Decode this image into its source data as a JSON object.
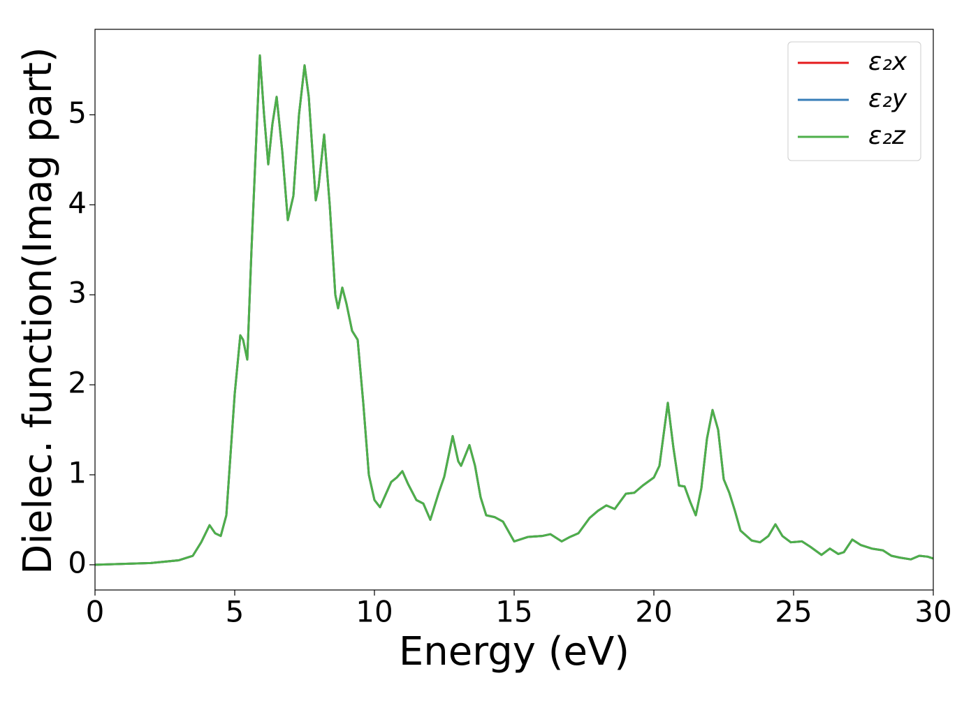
{
  "chart_data": {
    "type": "line",
    "xlabel": "Energy (eV)",
    "ylabel": "Dielec. function(Imag part)",
    "x": [
      0,
      1,
      2,
      3,
      3.5,
      3.8,
      4.1,
      4.3,
      4.5,
      4.7,
      5.0,
      5.2,
      5.3,
      5.45,
      5.6,
      5.9,
      6.05,
      6.2,
      6.35,
      6.5,
      6.7,
      6.9,
      7.1,
      7.3,
      7.5,
      7.65,
      7.9,
      8.0,
      8.2,
      8.4,
      8.6,
      8.7,
      8.85,
      9.0,
      9.2,
      9.4,
      9.6,
      9.8,
      10.0,
      10.2,
      10.6,
      10.8,
      11.0,
      11.2,
      11.5,
      11.75,
      12.0,
      12.3,
      12.5,
      12.8,
      13.0,
      13.1,
      13.4,
      13.6,
      13.8,
      14.0,
      14.3,
      14.6,
      15.0,
      15.5,
      16.0,
      16.3,
      16.7,
      17.0,
      17.3,
      17.7,
      18.0,
      18.3,
      18.6,
      19.0,
      19.3,
      19.6,
      20.0,
      20.2,
      20.5,
      20.7,
      20.9,
      21.1,
      21.3,
      21.5,
      21.7,
      21.9,
      22.1,
      22.3,
      22.5,
      22.7,
      22.9,
      23.1,
      23.5,
      23.8,
      24.1,
      24.35,
      24.6,
      24.9,
      25.3,
      25.6,
      26.0,
      26.3,
      26.6,
      26.8,
      27.1,
      27.4,
      27.8,
      28.2,
      28.5,
      28.8,
      29.2,
      29.5,
      29.8,
      30.0
    ],
    "series": [
      {
        "name": "ε₂x",
        "color": "#e41a1c",
        "values": [
          0,
          0.01,
          0.02,
          0.05,
          0.1,
          0.25,
          0.44,
          0.35,
          0.32,
          0.55,
          1.9,
          2.55,
          2.5,
          2.28,
          3.5,
          5.66,
          5.0,
          4.45,
          4.9,
          5.2,
          4.6,
          3.83,
          4.1,
          5.0,
          5.55,
          5.2,
          4.05,
          4.2,
          4.78,
          4.0,
          3.0,
          2.85,
          3.08,
          2.9,
          2.6,
          2.5,
          1.8,
          1.0,
          0.72,
          0.64,
          0.92,
          0.97,
          1.04,
          0.9,
          0.72,
          0.68,
          0.5,
          0.8,
          0.98,
          1.43,
          1.15,
          1.1,
          1.33,
          1.1,
          0.75,
          0.55,
          0.53,
          0.48,
          0.26,
          0.31,
          0.32,
          0.34,
          0.26,
          0.31,
          0.35,
          0.52,
          0.6,
          0.66,
          0.62,
          0.79,
          0.8,
          0.88,
          0.97,
          1.1,
          1.8,
          1.3,
          0.88,
          0.87,
          0.7,
          0.55,
          0.85,
          1.4,
          1.72,
          1.5,
          0.95,
          0.8,
          0.6,
          0.38,
          0.27,
          0.25,
          0.32,
          0.45,
          0.32,
          0.25,
          0.26,
          0.2,
          0.11,
          0.18,
          0.12,
          0.14,
          0.28,
          0.22,
          0.18,
          0.16,
          0.1,
          0.08,
          0.06,
          0.1,
          0.09,
          0.07
        ]
      },
      {
        "name": "ε₂y",
        "color": "#377eb8",
        "values": [
          0,
          0.01,
          0.02,
          0.05,
          0.1,
          0.25,
          0.44,
          0.35,
          0.32,
          0.55,
          1.9,
          2.55,
          2.5,
          2.28,
          3.5,
          5.66,
          5.0,
          4.45,
          4.9,
          5.2,
          4.6,
          3.83,
          4.1,
          5.0,
          5.55,
          5.2,
          4.05,
          4.2,
          4.78,
          4.0,
          3.0,
          2.85,
          3.08,
          2.9,
          2.6,
          2.5,
          1.8,
          1.0,
          0.72,
          0.64,
          0.92,
          0.97,
          1.04,
          0.9,
          0.72,
          0.68,
          0.5,
          0.8,
          0.98,
          1.43,
          1.15,
          1.1,
          1.33,
          1.1,
          0.75,
          0.55,
          0.53,
          0.48,
          0.26,
          0.31,
          0.32,
          0.34,
          0.26,
          0.31,
          0.35,
          0.52,
          0.6,
          0.66,
          0.62,
          0.79,
          0.8,
          0.88,
          0.97,
          1.1,
          1.8,
          1.3,
          0.88,
          0.87,
          0.7,
          0.55,
          0.85,
          1.4,
          1.72,
          1.5,
          0.95,
          0.8,
          0.6,
          0.38,
          0.27,
          0.25,
          0.32,
          0.45,
          0.32,
          0.25,
          0.26,
          0.2,
          0.11,
          0.18,
          0.12,
          0.14,
          0.28,
          0.22,
          0.18,
          0.16,
          0.1,
          0.08,
          0.06,
          0.1,
          0.09,
          0.07
        ]
      },
      {
        "name": "ε₂z",
        "color": "#4daf4a",
        "values": [
          0,
          0.01,
          0.02,
          0.05,
          0.1,
          0.25,
          0.44,
          0.35,
          0.32,
          0.55,
          1.9,
          2.55,
          2.5,
          2.28,
          3.5,
          5.66,
          5.0,
          4.45,
          4.9,
          5.2,
          4.6,
          3.83,
          4.1,
          5.0,
          5.55,
          5.2,
          4.05,
          4.2,
          4.78,
          4.0,
          3.0,
          2.85,
          3.08,
          2.9,
          2.6,
          2.5,
          1.8,
          1.0,
          0.72,
          0.64,
          0.92,
          0.97,
          1.04,
          0.9,
          0.72,
          0.68,
          0.5,
          0.8,
          0.98,
          1.43,
          1.15,
          1.1,
          1.33,
          1.1,
          0.75,
          0.55,
          0.53,
          0.48,
          0.26,
          0.31,
          0.32,
          0.34,
          0.26,
          0.31,
          0.35,
          0.52,
          0.6,
          0.66,
          0.62,
          0.79,
          0.8,
          0.88,
          0.97,
          1.1,
          1.8,
          1.3,
          0.88,
          0.87,
          0.7,
          0.55,
          0.85,
          1.4,
          1.72,
          1.5,
          0.95,
          0.8,
          0.6,
          0.38,
          0.27,
          0.25,
          0.32,
          0.45,
          0.32,
          0.25,
          0.26,
          0.2,
          0.11,
          0.18,
          0.12,
          0.14,
          0.28,
          0.22,
          0.18,
          0.16,
          0.1,
          0.08,
          0.06,
          0.1,
          0.09,
          0.07
        ]
      }
    ],
    "xlim": [
      0,
      30
    ],
    "xticks": [
      0,
      5,
      10,
      15,
      20,
      25,
      30
    ],
    "ylim": [
      -0.28,
      5.95
    ],
    "yticks": [
      0,
      1,
      2,
      3,
      4,
      5
    ],
    "grid": false,
    "legend": "upper right"
  }
}
